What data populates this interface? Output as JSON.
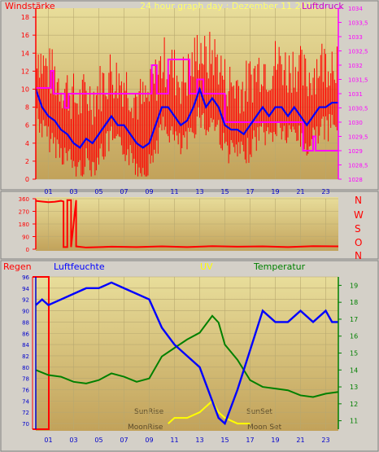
{
  "header": {
    "left_label": "Windstärke",
    "title": "24 hour graph day : Dezember 11 2015",
    "right_label": "Luftdruck"
  },
  "labels_bottom": {
    "regen": "Regen",
    "luftfeuchte": "Luftfeuchte",
    "uv": "UV",
    "temperatur": "Temperatur",
    "sunrise": "SunRise",
    "sunset": "SunSet",
    "moonrise": "MoonRise",
    "moonset": "Moon Set"
  },
  "compass": [
    "N",
    "W",
    "S",
    "O",
    "N"
  ],
  "colors": {
    "wind": "#ff0000",
    "wind_avg": "#0000ff",
    "pressure": "#ff00ff",
    "humidity": "#0000ff",
    "temperature": "#008000",
    "uv": "#ffff00",
    "rain": "#ff0000",
    "title": "#ffff66",
    "green_axis": "#008000"
  },
  "chart_data": [
    {
      "type": "line",
      "id": "wind-pressure",
      "title": "24 hour graph day : Dezember 11 2015",
      "x_ticks": [
        "01",
        "03",
        "05",
        "07",
        "09",
        "11",
        "13",
        "15",
        "17",
        "19",
        "21",
        "23"
      ],
      "y_left_label": "Windstärke",
      "y_left_ticks": [
        "0",
        "2",
        "4",
        "6",
        "8",
        "10",
        "12",
        "14",
        "16",
        "18"
      ],
      "y_left_range": [
        0,
        19
      ],
      "y_right_label": "Luftdruck",
      "y_right_ticks": [
        "1028",
        "1028,5",
        "1029",
        "1029,5",
        "1030",
        "1030,5",
        "1031",
        "1031,5",
        "1032",
        "1032,5",
        "1033",
        "1033,5",
        "1034"
      ],
      "y_right_range": [
        1028,
        1034
      ],
      "series": [
        {
          "axis": "left",
          "color": "#0000ff",
          "x": [
            0,
            0.5,
            1,
            1.5,
            2,
            2.5,
            3,
            3.5,
            4,
            4.5,
            5,
            5.5,
            6,
            6.5,
            7,
            7.5,
            8,
            8.5,
            9,
            9.5,
            10,
            10.5,
            11,
            11.5,
            12,
            12.5,
            13,
            13.5,
            14,
            14.5,
            15,
            15.5,
            16,
            16.5,
            17,
            17.5,
            18,
            18.5,
            19,
            19.5,
            20,
            20.5,
            21,
            21.5,
            22,
            22.5,
            23,
            23.5,
            24
          ],
          "values": [
            10,
            8,
            7,
            6.5,
            5.5,
            5,
            4,
            3.5,
            4.5,
            4,
            5,
            6,
            7,
            6,
            6,
            5,
            4,
            3.5,
            4,
            6,
            8,
            8,
            7,
            6,
            6.5,
            8,
            10,
            8,
            9,
            8,
            6,
            5.5,
            5.5,
            5,
            6,
            7,
            8,
            7,
            8,
            8,
            7,
            8,
            7,
            6,
            7,
            8,
            8,
            8.5,
            8.5
          ]
        },
        {
          "axis": "right",
          "color": "#ff00ff",
          "x": [
            0,
            1.2,
            1.2,
            1.4,
            1.4,
            2.3,
            2.3,
            2.6,
            2.6,
            6.2,
            6.2,
            9.2,
            9.2,
            9.6,
            9.6,
            10.5,
            10.5,
            12.2,
            12.2,
            12.8,
            12.8,
            13.3,
            13.3,
            15,
            15,
            19,
            19,
            21.2,
            21.2,
            22,
            22,
            22.2,
            22.2,
            24
          ],
          "values": [
            1031.2,
            1031.2,
            1031.8,
            1031.8,
            1031,
            1031,
            1030.5,
            1030.5,
            1031,
            1031,
            1031,
            1031,
            1032,
            1032,
            1031,
            1031,
            1032.2,
            1032.2,
            1031,
            1031,
            1031.5,
            1031.5,
            1031,
            1031,
            1030,
            1030,
            1030,
            1030,
            1029,
            1029,
            1029.5,
            1029.5,
            1029,
            1029
          ]
        }
      ]
    },
    {
      "type": "line",
      "id": "wind-direction",
      "x_ticks": [
        "01",
        "03",
        "05",
        "07",
        "09",
        "11",
        "13",
        "15",
        "17",
        "19",
        "21",
        "23"
      ],
      "y_ticks": [
        "0",
        "90",
        "180",
        "270",
        "360"
      ],
      "y_range": [
        0,
        360
      ],
      "y_right_labels": [
        "N",
        "W",
        "S",
        "O",
        "N"
      ],
      "series": [
        {
          "color": "#ff0000",
          "x": [
            0,
            0.5,
            1,
            1.5,
            2,
            2.2,
            2.2,
            2.5,
            2.5,
            2.8,
            2.8,
            3.2,
            3.2,
            4,
            6,
            8,
            10,
            12,
            14,
            16,
            18,
            20,
            22,
            24
          ],
          "values": [
            345,
            340,
            335,
            338,
            345,
            340,
            15,
            15,
            350,
            350,
            15,
            350,
            20,
            12,
            18,
            15,
            20,
            15,
            22,
            18,
            20,
            15,
            22,
            20
          ]
        }
      ]
    },
    {
      "type": "line",
      "id": "humidity-temperature",
      "x_ticks": [
        "01",
        "03",
        "05",
        "07",
        "09",
        "11",
        "13",
        "15",
        "17",
        "19",
        "21",
        "23"
      ],
      "y_left_ticks": [
        "70",
        "72",
        "74",
        "76",
        "78",
        "80",
        "82",
        "84",
        "86",
        "88",
        "90",
        "92",
        "94",
        "96"
      ],
      "y_left_range": [
        69,
        96
      ],
      "y_right_ticks": [
        "11",
        "12",
        "13",
        "14",
        "15",
        "16",
        "17",
        "18",
        "19"
      ],
      "y_right_range": [
        10.5,
        19.5
      ],
      "series": [
        {
          "name": "Luftfeuchte",
          "axis": "left",
          "color": "#0000ff",
          "x": [
            0,
            0.5,
            1,
            2,
            3,
            4,
            5,
            6,
            7,
            8,
            9,
            10,
            11,
            12,
            13,
            14,
            14.5,
            15,
            16,
            17,
            18,
            19,
            20,
            21,
            22,
            23,
            23.5,
            24
          ],
          "values": [
            91,
            92,
            91,
            92,
            93,
            94,
            94,
            95,
            94,
            93,
            92,
            87,
            84,
            82,
            80,
            74,
            71,
            70,
            76,
            83,
            90,
            88,
            88,
            90,
            88,
            90,
            88,
            88
          ]
        },
        {
          "name": "Temperatur",
          "axis": "right",
          "color": "#008000",
          "x": [
            0,
            1,
            2,
            3,
            4,
            5,
            6,
            7,
            8,
            9,
            10,
            11,
            12,
            13,
            14,
            14.5,
            15,
            16,
            17,
            18,
            19,
            20,
            21,
            22,
            23,
            24
          ],
          "values": [
            14,
            13.7,
            13.6,
            13.3,
            13.2,
            13.4,
            13.8,
            13.6,
            13.3,
            13.5,
            14.8,
            15.3,
            15.8,
            16.2,
            17.2,
            16.8,
            15.5,
            14.6,
            13.4,
            13,
            12.9,
            12.8,
            12.5,
            12.4,
            12.6,
            12.7
          ]
        },
        {
          "name": "UV",
          "axis": "left",
          "color": "#ffff00",
          "x": [
            10.5,
            11,
            12,
            13,
            13.5,
            14,
            14.5,
            15,
            16,
            17
          ],
          "values": [
            70,
            71,
            71,
            72,
            73,
            74,
            72,
            71,
            70,
            70
          ]
        }
      ]
    }
  ]
}
